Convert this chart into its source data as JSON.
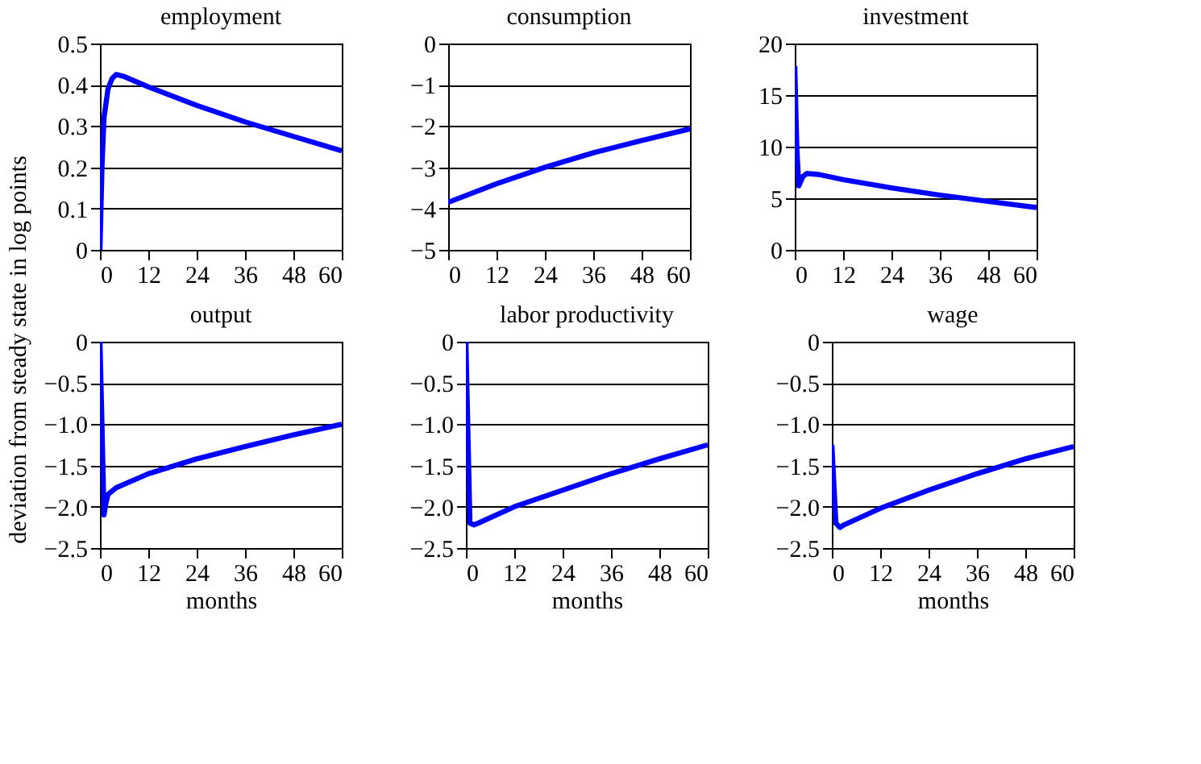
{
  "chart_data": [
    {
      "type": "line",
      "title": "employment",
      "ylabel": "deviation from steady state in log points",
      "x": [
        0,
        0.5,
        1,
        2,
        3,
        4,
        6,
        12,
        24,
        36,
        48,
        60
      ],
      "series": [
        {
          "color": "#0000ff",
          "values": [
            0,
            0.2,
            0.32,
            0.39,
            0.415,
            0.425,
            0.42,
            0.395,
            0.35,
            0.31,
            0.275,
            0.24
          ]
        }
      ],
      "xlim": [
        0,
        60
      ],
      "xticks": [
        0,
        12,
        24,
        36,
        48,
        60
      ],
      "ylim": [
        0,
        0.5
      ],
      "yticks": [
        0,
        0.1,
        0.2,
        0.3,
        0.4,
        0.5
      ],
      "grid": "y",
      "marker": "none",
      "line_style": "solid"
    },
    {
      "type": "line",
      "title": "consumption",
      "x": [
        0,
        12,
        24,
        36,
        48,
        60
      ],
      "series": [
        {
          "color": "#0000ff",
          "values": [
            -3.85,
            -3.4,
            -3.0,
            -2.65,
            -2.35,
            -2.07
          ]
        }
      ],
      "xlim": [
        0,
        60
      ],
      "xticks": [
        0,
        12,
        24,
        36,
        48,
        60
      ],
      "ylim": [
        -5,
        0
      ],
      "yticks": [
        {
          "value": -5,
          "label": "−5"
        },
        {
          "value": -4,
          "label": "−4"
        },
        {
          "value": -3,
          "label": "−3"
        },
        {
          "value": -2,
          "label": "−2"
        },
        {
          "value": -1,
          "label": "−1"
        },
        0
      ],
      "grid": "y",
      "marker": "none",
      "line_style": "solid"
    },
    {
      "type": "line",
      "title": "investment",
      "x": [
        0,
        0.5,
        1,
        2,
        3,
        6,
        12,
        24,
        36,
        48,
        60
      ],
      "series": [
        {
          "color": "#0000ff",
          "values": [
            17.8,
            10,
            6.2,
            7.1,
            7.4,
            7.3,
            6.8,
            6.0,
            5.3,
            4.7,
            4.1
          ]
        }
      ],
      "xlim": [
        0,
        60
      ],
      "xticks": [
        0,
        12,
        24,
        36,
        48,
        60
      ],
      "ylim": [
        0,
        20
      ],
      "yticks": [
        0,
        5,
        10,
        15,
        20
      ],
      "grid": "y",
      "marker": "none",
      "line_style": "solid"
    },
    {
      "type": "line",
      "title": "output",
      "xlabel": "months",
      "x": [
        0,
        0.5,
        1,
        1.5,
        2,
        4,
        12,
        24,
        36,
        48,
        60
      ],
      "series": [
        {
          "color": "#0000ff",
          "values": [
            0,
            -1.0,
            -2.1,
            -1.95,
            -1.85,
            -1.77,
            -1.6,
            -1.42,
            -1.27,
            -1.13,
            -1.0
          ]
        }
      ],
      "xlim": [
        0,
        60
      ],
      "xticks": [
        0,
        12,
        24,
        36,
        48,
        60
      ],
      "ylim": [
        -2.5,
        0
      ],
      "yticks": [
        {
          "value": -2.5,
          "label": "−2.5"
        },
        {
          "value": -2,
          "label": "−2.0"
        },
        {
          "value": -1.5,
          "label": "−1.5"
        },
        {
          "value": -1,
          "label": "−1.0"
        },
        {
          "value": -0.5,
          "label": "−0.5"
        },
        0
      ],
      "grid": "y",
      "marker": "none",
      "line_style": "solid"
    },
    {
      "type": "line",
      "title": "labor productivity",
      "xlabel": "months",
      "x": [
        0,
        0.5,
        1,
        2,
        3,
        12,
        24,
        36,
        48,
        60
      ],
      "series": [
        {
          "color": "#0000ff",
          "values": [
            0,
            -1.1,
            -2.2,
            -2.22,
            -2.2,
            -2.0,
            -1.8,
            -1.6,
            -1.42,
            -1.25
          ]
        }
      ],
      "xlim": [
        0,
        60
      ],
      "xticks": [
        0,
        12,
        24,
        36,
        48,
        60
      ],
      "ylim": [
        -2.5,
        0
      ],
      "yticks": [
        {
          "value": -2.5,
          "label": "−2.5"
        },
        {
          "value": -2,
          "label": "−2.0"
        },
        {
          "value": -1.5,
          "label": "−1.5"
        },
        {
          "value": -1,
          "label": "−1.0"
        },
        {
          "value": -0.5,
          "label": "−0.5"
        },
        0
      ],
      "grid": "y",
      "marker": "none",
      "line_style": "solid"
    },
    {
      "type": "line",
      "title": "wage",
      "xlabel": "months",
      "x": [
        0,
        1,
        2,
        3,
        12,
        24,
        36,
        48,
        60
      ],
      "series": [
        {
          "color": "#0000ff",
          "values": [
            -1.25,
            -2.2,
            -2.25,
            -2.22,
            -2.02,
            -1.8,
            -1.6,
            -1.42,
            -1.27
          ]
        }
      ],
      "xlim": [
        0,
        60
      ],
      "xticks": [
        0,
        12,
        24,
        36,
        48,
        60
      ],
      "ylim": [
        -2.5,
        0
      ],
      "yticks": [
        {
          "value": -2.5,
          "label": "−2.5"
        },
        {
          "value": -2,
          "label": "−2.0"
        },
        {
          "value": -1.5,
          "label": "−1.5"
        },
        {
          "value": -1,
          "label": "−1.0"
        },
        {
          "value": -0.5,
          "label": "−0.5"
        },
        0
      ],
      "grid": "y",
      "marker": "none",
      "line_style": "solid"
    }
  ]
}
